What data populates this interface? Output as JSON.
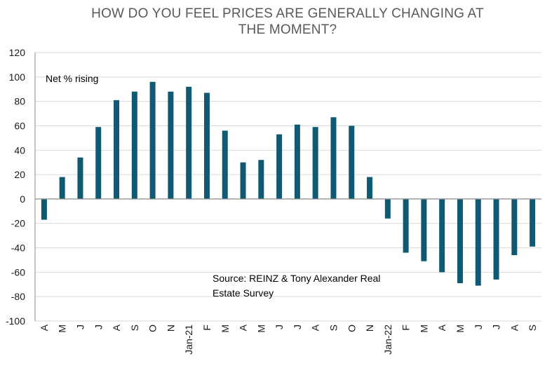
{
  "chart_data": {
    "type": "bar",
    "title_lines": [
      "HOW DO YOU FEEL PRICES ARE GENERALLY CHANGING AT",
      "THE MOMENT?"
    ],
    "series_label": "Net % rising",
    "source": [
      "Source: REINZ & Tony Alexander  Real",
      "Estate Survey"
    ],
    "ylim": [
      -100,
      120
    ],
    "yticks": [
      -100,
      -80,
      -60,
      -40,
      -20,
      0,
      20,
      40,
      60,
      80,
      100,
      120
    ],
    "categories": [
      "A",
      "M",
      "J",
      "J",
      "A",
      "S",
      "O",
      "N",
      "Jan-21",
      "F",
      "M",
      "A",
      "M",
      "J",
      "J",
      "A",
      "S",
      "O",
      "N",
      "Jan-22",
      "F",
      "M",
      "A",
      "M",
      "J",
      "J",
      "A",
      "S"
    ],
    "values": [
      -17,
      18,
      34,
      59,
      81,
      88,
      96,
      88,
      92,
      87,
      56,
      30,
      32,
      53,
      61,
      59,
      67,
      60,
      18,
      -16,
      -44,
      -51,
      -60,
      -69,
      -71,
      -66,
      -46,
      -39
    ],
    "colors": {
      "bar": "#0e5a73",
      "grid": "#d9d9d9",
      "axis": "#8c8c8c"
    }
  }
}
